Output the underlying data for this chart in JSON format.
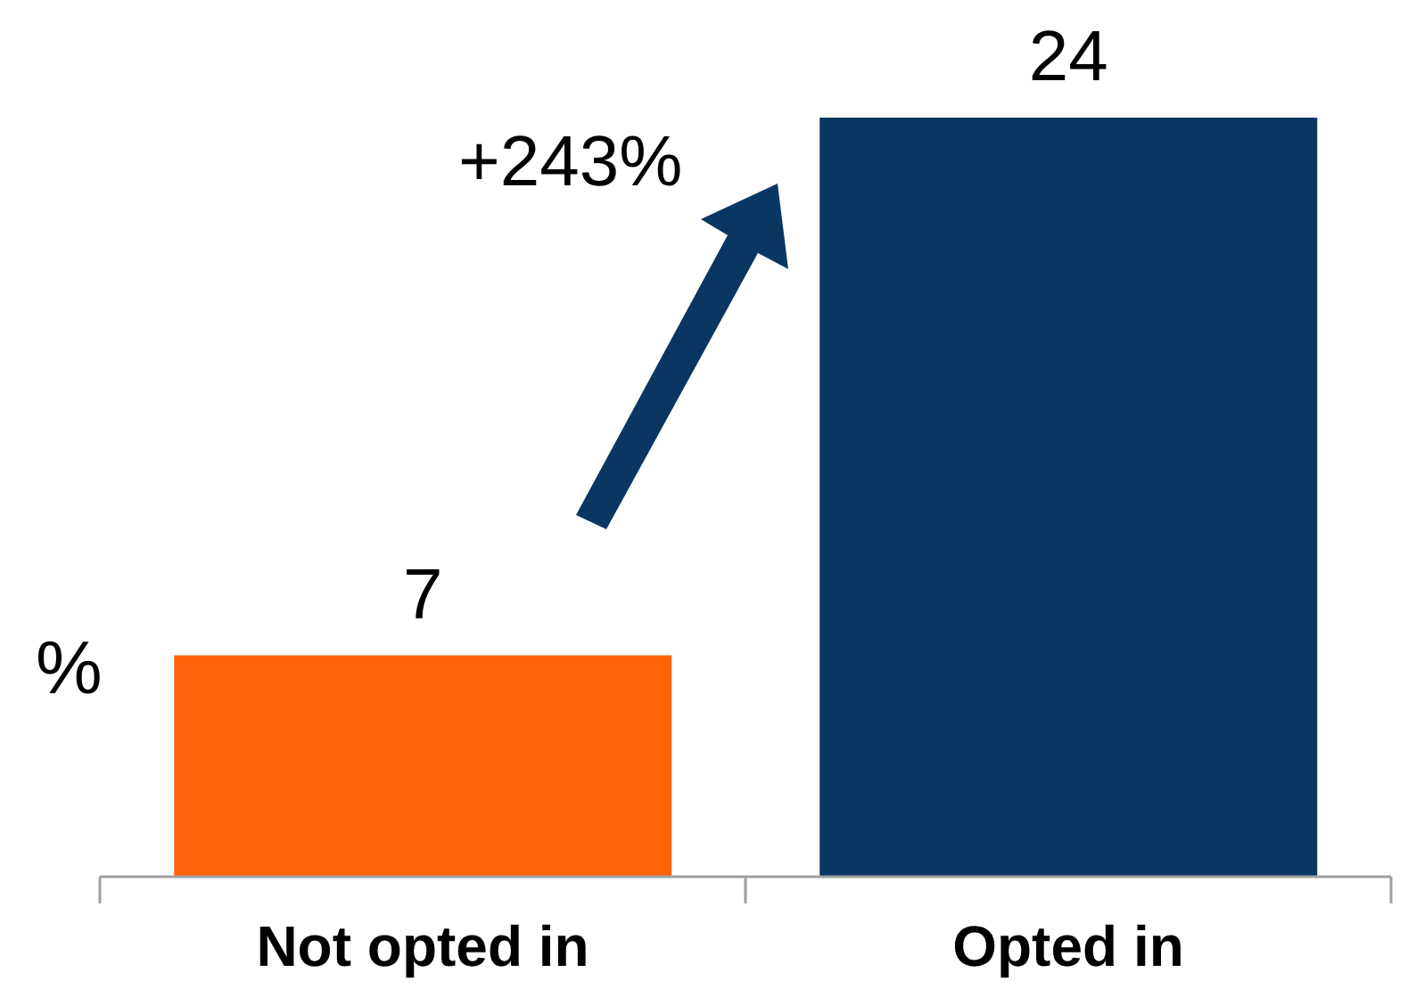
{
  "chart_data": {
    "type": "bar",
    "ylabel": "%",
    "categories": [
      "Not opted in",
      "Opted in"
    ],
    "values": [
      7,
      24
    ],
    "colors": [
      "#ff6309",
      "#0a3762"
    ],
    "data_labels": true,
    "annotations": [
      "+243%"
    ]
  }
}
